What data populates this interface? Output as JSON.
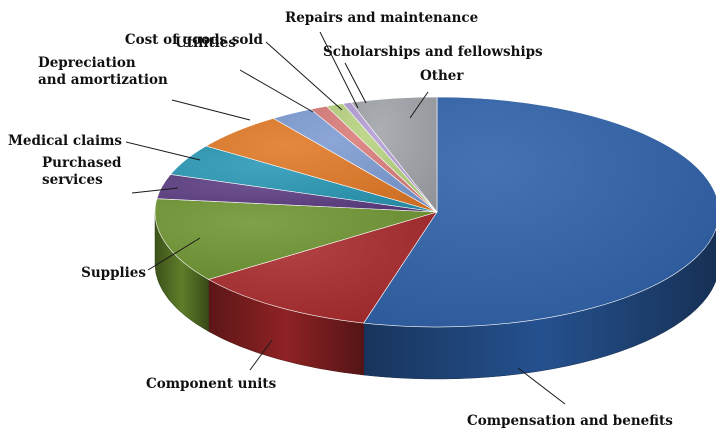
{
  "chart_data": {
    "type": "pie",
    "style": "3d",
    "title": "",
    "legend": "none",
    "slices": [
      {
        "label": "Compensation and benefits",
        "value": 55.0,
        "color": "#2c5fa8"
      },
      {
        "label": "Component units",
        "value": 11.0,
        "color": "#a8282a"
      },
      {
        "label": "Supplies",
        "value": 12.0,
        "color": "#6e9430"
      },
      {
        "label": "Purchased services",
        "value": 3.5,
        "color": "#5a3a80"
      },
      {
        "label": "Medical claims",
        "value": 4.5,
        "color": "#2796b4"
      },
      {
        "label": "Depreciation and amortization",
        "value": 5.5,
        "color": "#e07825"
      },
      {
        "label": "Utilities",
        "value": 2.5,
        "color": "#7b9ad2"
      },
      {
        "label": "Cost of goods sold",
        "value": 1.0,
        "color": "#d87a78"
      },
      {
        "label": "Repairs and maintenance",
        "value": 1.0,
        "color": "#b5d27e"
      },
      {
        "label": "Scholarships and fellowships",
        "value": 0.5,
        "color": "#b39bd4"
      },
      {
        "label": "Other",
        "value": 5.0,
        "color": "#a0a3a8"
      }
    ]
  }
}
